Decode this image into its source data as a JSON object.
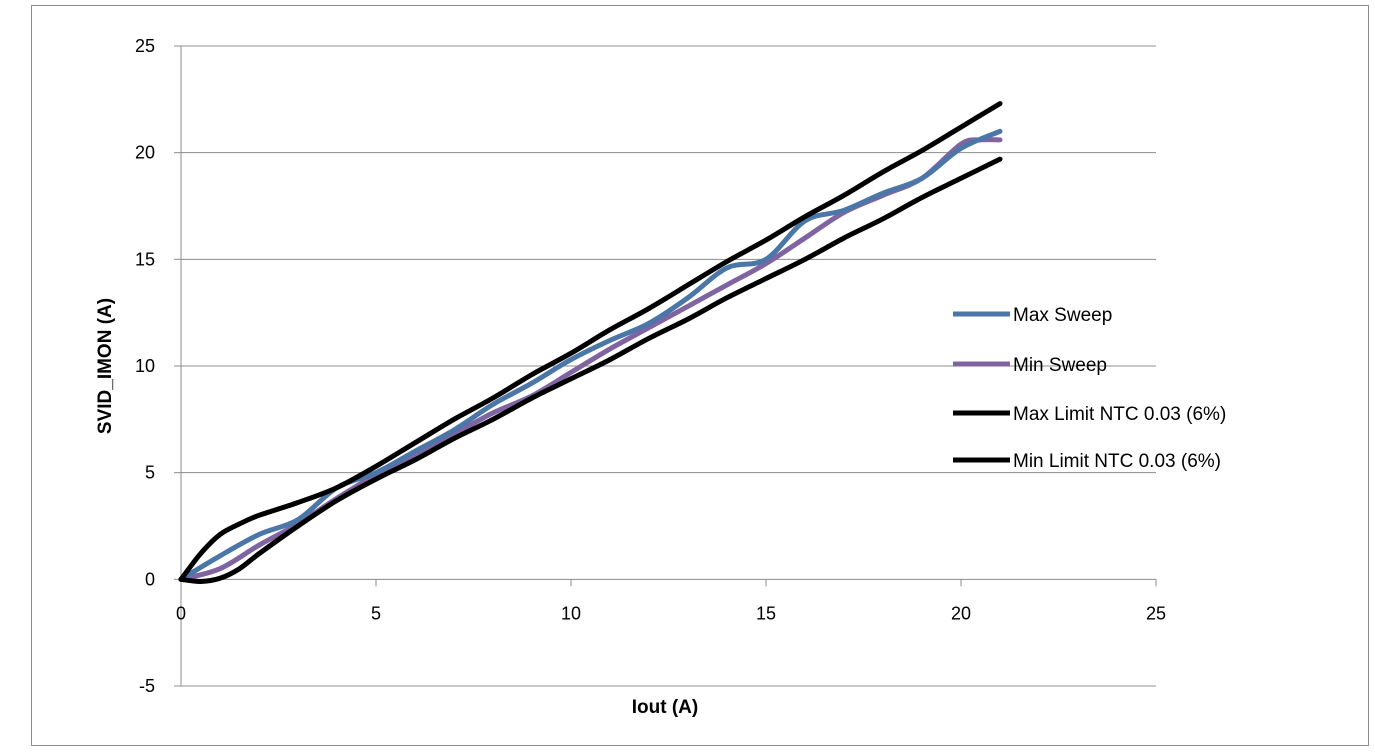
{
  "chart_data": {
    "type": "line",
    "title": "",
    "xlabel": "Iout (A)",
    "ylabel": "SVID_IMON  (A)",
    "xlim": [
      0,
      25
    ],
    "ylim": [
      -5,
      25
    ],
    "x_ticks": [
      "0",
      "5",
      "10",
      "15",
      "20",
      "25"
    ],
    "y_ticks": [
      "-5",
      "0",
      "5",
      "10",
      "15",
      "20",
      "25"
    ],
    "grid": "horizontal",
    "legend": "right",
    "series": [
      {
        "name": "Max Sweep",
        "color": "#4a76a8",
        "x": [
          0,
          1,
          2,
          3,
          4,
          5,
          6,
          7,
          8,
          9,
          10,
          11,
          12,
          13,
          14,
          15,
          16,
          17,
          18,
          19,
          20,
          21
        ],
        "y": [
          0,
          1.1,
          2.1,
          2.8,
          4.3,
          5.0,
          6.0,
          7.0,
          8.2,
          9.2,
          10.3,
          11.2,
          12.0,
          13.2,
          14.6,
          15.0,
          16.8,
          17.3,
          18.1,
          18.8,
          20.2,
          21.0
        ]
      },
      {
        "name": "Min Sweep",
        "color": "#8064a2",
        "x": [
          0,
          1,
          2,
          3,
          4,
          5,
          6,
          7,
          8,
          9,
          10,
          11,
          12,
          13,
          14,
          15,
          16,
          17,
          18,
          19,
          20,
          20.5,
          21
        ],
        "y": [
          0,
          0.5,
          1.6,
          2.6,
          3.8,
          4.9,
          5.8,
          6.8,
          7.8,
          8.6,
          9.7,
          10.8,
          11.8,
          12.8,
          13.8,
          14.8,
          16.0,
          17.2,
          18.0,
          18.8,
          20.4,
          20.6,
          20.6
        ]
      },
      {
        "name": "Max Limit NTC 0.03 (6%)",
        "color": "#000000",
        "x": [
          0,
          0.5,
          1,
          1.5,
          2,
          3,
          4,
          5,
          6,
          7,
          8,
          9,
          10,
          11,
          12,
          13,
          14,
          15,
          16,
          17,
          18,
          19,
          20,
          21
        ],
        "y": [
          0,
          1.2,
          2.1,
          2.6,
          3.0,
          3.6,
          4.3,
          5.3,
          6.4,
          7.5,
          8.5,
          9.6,
          10.6,
          11.7,
          12.7,
          13.8,
          14.9,
          15.9,
          17.0,
          18.0,
          19.1,
          20.1,
          21.2,
          22.3
        ]
      },
      {
        "name": "Min Limit NTC 0.03 (6%)",
        "color": "#000000",
        "x": [
          0,
          0.5,
          1,
          1.5,
          2,
          3,
          4,
          5,
          6,
          7,
          8,
          9,
          10,
          11,
          12,
          13,
          14,
          15,
          16,
          17,
          18,
          19,
          20,
          21
        ],
        "y": [
          0,
          -0.1,
          0.05,
          0.5,
          1.2,
          2.5,
          3.7,
          4.7,
          5.6,
          6.6,
          7.5,
          8.5,
          9.4,
          10.3,
          11.3,
          12.2,
          13.2,
          14.1,
          15.0,
          16.0,
          16.9,
          17.9,
          18.8,
          19.7
        ]
      }
    ]
  }
}
